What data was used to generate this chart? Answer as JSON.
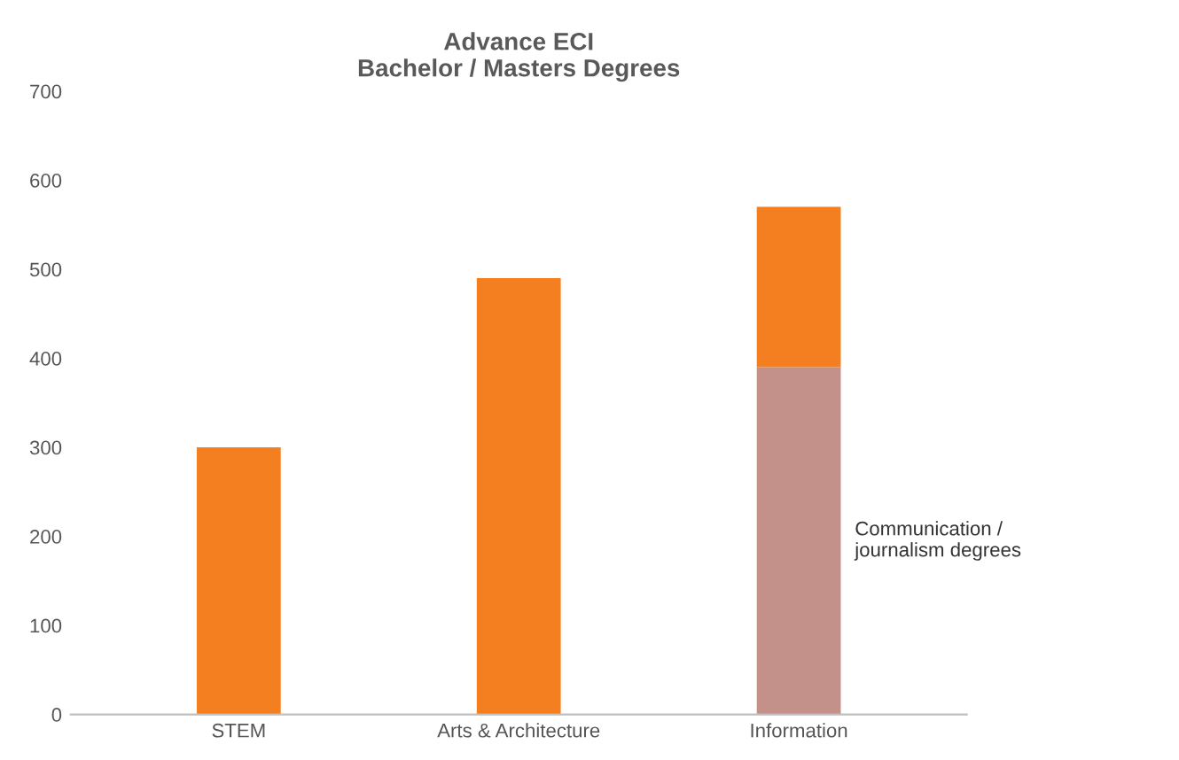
{
  "chart_data": {
    "type": "bar",
    "title": "Advance ECI\nBachelor / Masters Degrees",
    "categories": [
      "STEM",
      "Arts & Architecture",
      "Information"
    ],
    "stacked": true,
    "series": [
      {
        "name": "Communication /\njournalism degrees",
        "color": "#c4918a",
        "values": [
          null,
          null,
          390
        ]
      },
      {
        "color": "#f47f20",
        "values": [
          300,
          490,
          180
        ]
      }
    ],
    "ylim": [
      0,
      700
    ],
    "yticks": [
      0,
      100,
      200,
      300,
      400,
      500,
      600,
      700
    ],
    "grid": false,
    "legend": false
  }
}
